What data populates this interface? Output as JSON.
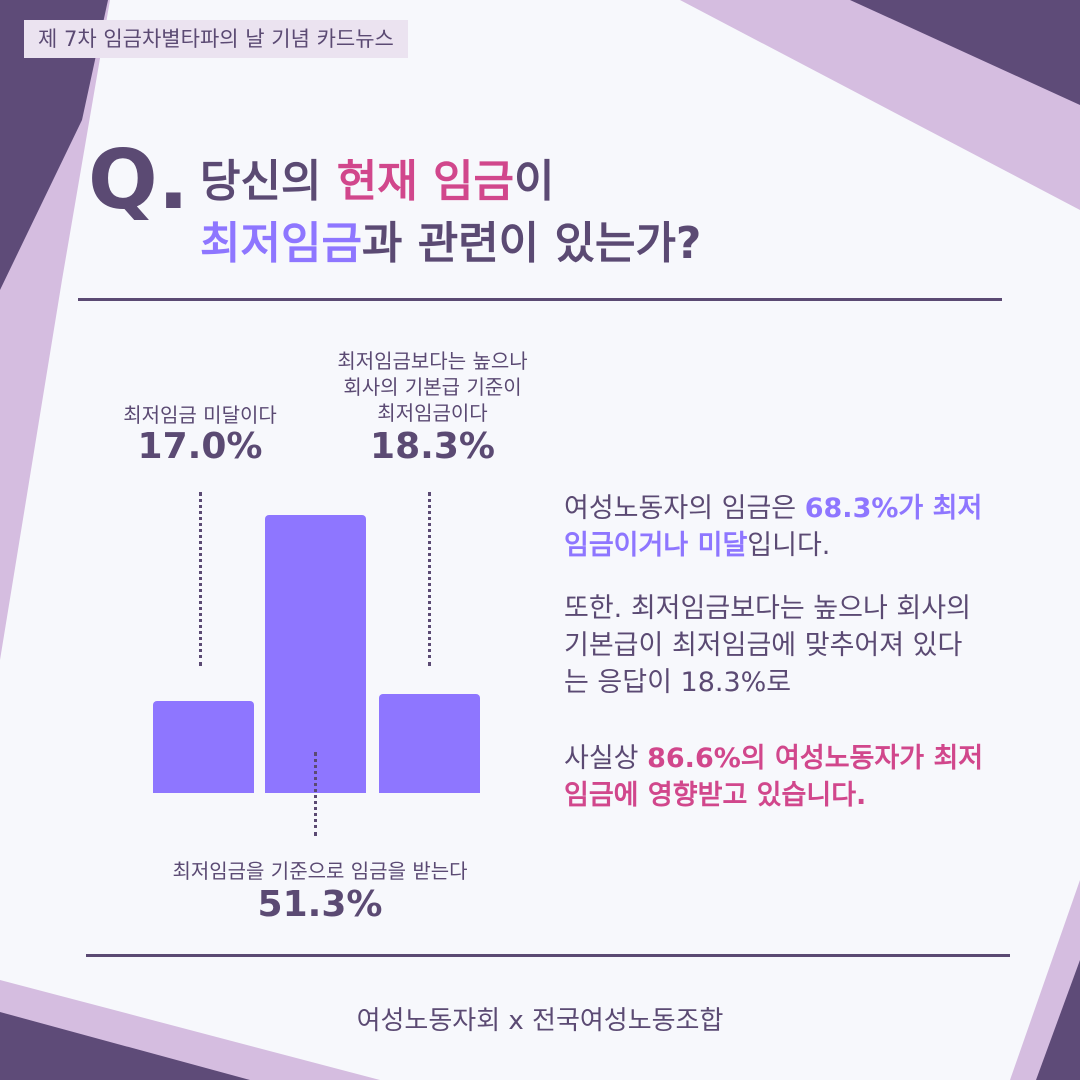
{
  "header": {
    "tag": "제 7차 임금차별타파의 날 기념 카드뉴스"
  },
  "question": {
    "mark": "Q.",
    "line1": [
      {
        "text": "당신의 ",
        "style": "plain"
      },
      {
        "text": "현재 임금",
        "style": "pink"
      },
      {
        "text": "이",
        "style": "plain"
      }
    ],
    "line2": [
      {
        "text": "최저임금",
        "style": "violet"
      },
      {
        "text": "과 관련이 있는가?",
        "style": "plain"
      }
    ]
  },
  "chart_data": {
    "type": "bar",
    "categories": [
      "최저임금 미달이다",
      "최저임금을 기준으로 임금을 받는다",
      "최저임금보다는 높으나 회사의 기본급 기준이 최저임금이다"
    ],
    "values": [
      17.0,
      51.3,
      18.3
    ],
    "value_labels": [
      "17.0%",
      "51.3%",
      "18.3%"
    ],
    "label_lines": [
      [
        "최저임금 미달이다"
      ],
      [
        "최저임금을 기준으로 임금을 받는다"
      ],
      [
        "최저임금보다는 높으나",
        "회사의 기본급 기준이",
        "최저임금이다"
      ]
    ],
    "bar_color": "#8e76ff",
    "grid": false
  },
  "summary": {
    "p1": [
      {
        "text": "여성노동자의 임금은 ",
        "style": "plain"
      },
      {
        "text": "68.3%가 최저임금이거나 미달",
        "style": "violet"
      },
      {
        "text": "입니다.",
        "style": "plain"
      }
    ],
    "p2": [
      {
        "text": "또한. 최저임금보다는 높으나 회사의 기본급이 최저임금에 맞추어져 있다는 응답이 18.3%로",
        "style": "plain"
      }
    ],
    "p3": [
      {
        "text": "사실상 ",
        "style": "plain"
      },
      {
        "text": "86.6%의 여성노동자가 최저임금에 영향받고 있습니다.",
        "style": "pink"
      }
    ]
  },
  "footer": {
    "text": "여성노동자회 x 전국여성노동조합"
  },
  "colors": {
    "dark": "#5b4a73",
    "lavender": "#d5bde0",
    "pink": "#d1478c",
    "violet": "#8e76ff",
    "background": "#f7f8fc"
  }
}
